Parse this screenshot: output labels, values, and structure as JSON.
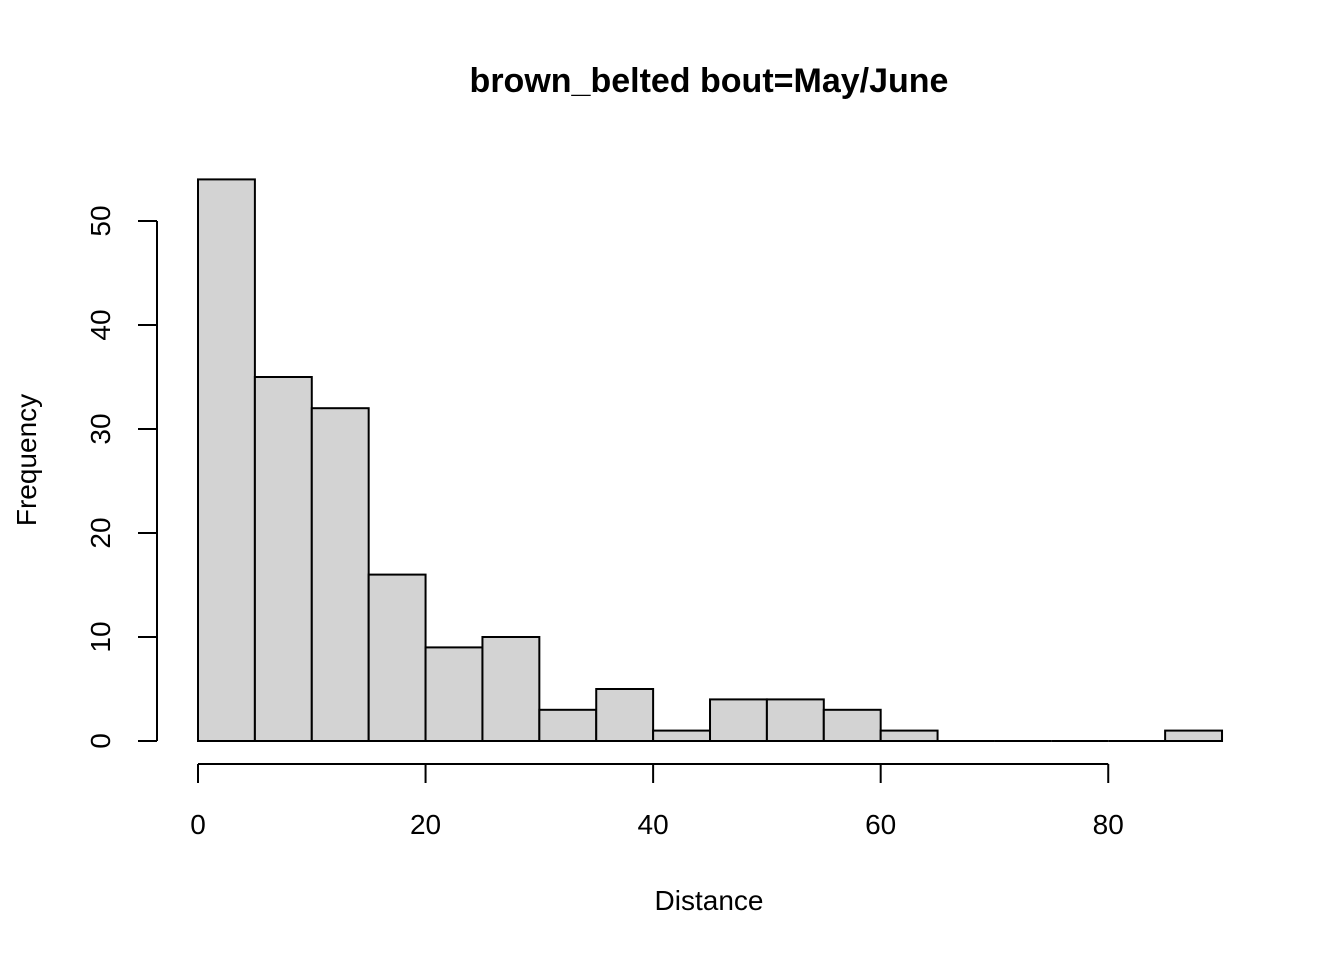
{
  "chart_data": {
    "type": "bar",
    "title": "brown_belted  bout=May/June",
    "xlabel": "Distance",
    "ylabel": "Frequency",
    "bin_edges": [
      0,
      5,
      10,
      15,
      20,
      25,
      30,
      35,
      40,
      45,
      50,
      55,
      60,
      65,
      70,
      75,
      80,
      85,
      90
    ],
    "values": [
      54,
      35,
      32,
      16,
      9,
      10,
      3,
      5,
      1,
      4,
      4,
      3,
      1,
      0,
      0,
      0,
      0,
      1
    ],
    "xlim": [
      0,
      90
    ],
    "ylim": [
      0,
      54
    ],
    "x_ticks": [
      0,
      20,
      40,
      60,
      80
    ],
    "y_ticks": [
      0,
      10,
      20,
      30,
      40,
      50
    ],
    "bar_fill": "#d3d3d3",
    "bar_stroke": "#000000",
    "grid": false,
    "legend": "none"
  }
}
